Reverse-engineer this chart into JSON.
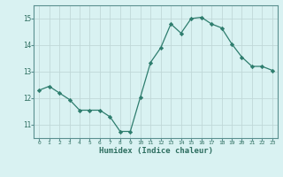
{
  "x": [
    0,
    1,
    2,
    3,
    4,
    5,
    6,
    7,
    8,
    9,
    10,
    11,
    12,
    13,
    14,
    15,
    16,
    17,
    18,
    19,
    20,
    21,
    22,
    23
  ],
  "y": [
    12.3,
    12.45,
    12.2,
    11.95,
    11.55,
    11.55,
    11.55,
    11.3,
    10.75,
    10.75,
    12.05,
    13.35,
    13.9,
    14.8,
    14.45,
    15.0,
    15.05,
    14.8,
    14.65,
    14.05,
    13.55,
    13.2,
    13.2,
    13.05
  ],
  "xlabel": "Humidex (Indice chaleur)",
  "ylim": [
    10.5,
    15.5
  ],
  "yticks": [
    11,
    12,
    13,
    14,
    15
  ],
  "xticks": [
    0,
    1,
    2,
    3,
    4,
    5,
    6,
    7,
    8,
    9,
    10,
    11,
    12,
    13,
    14,
    15,
    16,
    17,
    18,
    19,
    20,
    21,
    22,
    23
  ],
  "line_color": "#2e7d6e",
  "marker": "D",
  "bg_color": "#d9f2f2",
  "grid_color": "#c0d8d8",
  "tick_color": "#2e6e60",
  "label_color": "#2e6e60",
  "spine_color": "#5a9090"
}
